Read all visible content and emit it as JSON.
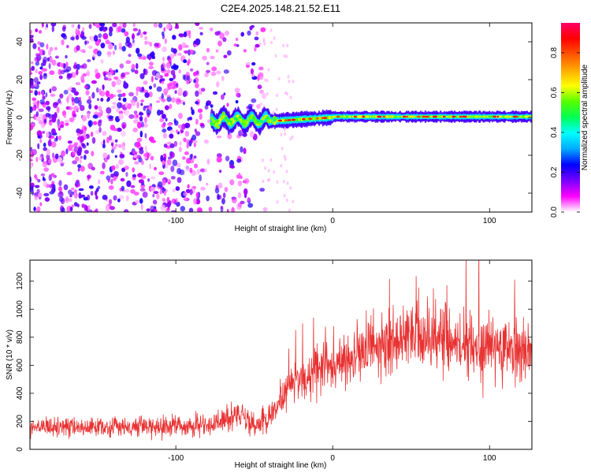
{
  "title": "C2E4.2025.148.21.52.E11",
  "chart_data": [
    {
      "type": "heatmap",
      "xlabel": "Height of straight line (km)",
      "ylabel": "Frequency (Hz)",
      "xlim": [
        -193,
        127
      ],
      "ylim": [
        -50,
        50
      ],
      "x_ticks": [
        -100,
        0,
        100
      ],
      "y_ticks": [
        -40,
        -20,
        0,
        20,
        40
      ],
      "colorbar": {
        "label": "Normalized spectral amplitude",
        "range": [
          0,
          0.95
        ],
        "ticks": [
          0.0,
          0.2,
          0.4,
          0.6,
          0.8
        ],
        "tick_labels": [
          "0.0",
          "0.2",
          "0.4",
          "0.6",
          "0.8"
        ],
        "colors": [
          "#ffffff",
          "#ff00ff",
          "#7700ff",
          "#0000ff",
          "#00aaff",
          "#00ffff",
          "#00ff55",
          "#55ff00",
          "#ffff00",
          "#ffaa00",
          "#ff5500",
          "#ff0000",
          "#ff0066"
        ]
      },
      "signal_band": {
        "x_start": -77,
        "x_end": 127,
        "center_frequency": 0
      },
      "noise_region": {
        "x_start": -193,
        "x_end": -47
      }
    },
    {
      "type": "line",
      "xlabel": "Height of straight line (km)",
      "ylabel": "SNR (10 * v/v)",
      "xlim": [
        -193,
        127
      ],
      "ylim": [
        0,
        1350
      ],
      "x_ticks": [
        -100,
        0,
        100
      ],
      "y_ticks": [
        0,
        200,
        400,
        600,
        800,
        1000,
        1200
      ],
      "line_color": "#e83232",
      "profile": [
        {
          "x": -193,
          "y": 150
        },
        {
          "x": -120,
          "y": 160
        },
        {
          "x": -80,
          "y": 170
        },
        {
          "x": -62,
          "y": 230
        },
        {
          "x": -48,
          "y": 180
        },
        {
          "x": -38,
          "y": 250
        },
        {
          "x": -32,
          "y": 400
        },
        {
          "x": -20,
          "y": 500
        },
        {
          "x": -5,
          "y": 580
        },
        {
          "x": 10,
          "y": 650
        },
        {
          "x": 25,
          "y": 740
        },
        {
          "x": 45,
          "y": 790
        },
        {
          "x": 65,
          "y": 790
        },
        {
          "x": 80,
          "y": 760
        },
        {
          "x": 95,
          "y": 700
        },
        {
          "x": 110,
          "y": 740
        },
        {
          "x": 127,
          "y": 710
        }
      ]
    }
  ]
}
